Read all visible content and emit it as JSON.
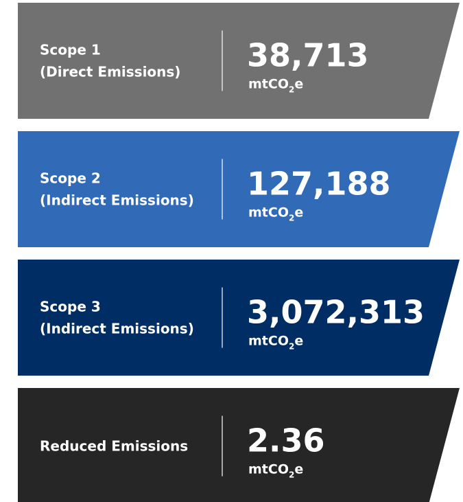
{
  "panels": [
    {
      "label": [
        "Scope 1",
        "(Direct Emissions)"
      ],
      "value": "38,713",
      "unit": {
        "base": "mtCO",
        "sub": "2",
        "tail": "e"
      },
      "color": "#717171"
    },
    {
      "label": [
        "Scope 2",
        "(Indirect Emissions)"
      ],
      "value": "127,188",
      "unit": {
        "base": "mtCO",
        "sub": "2",
        "tail": "e"
      },
      "color": "#316bb7"
    },
    {
      "label": [
        "Scope 3",
        "(Indirect Emissions)"
      ],
      "value": "3,072,313",
      "unit": {
        "base": "mtCO",
        "sub": "2",
        "tail": "e"
      },
      "color": "#002d63"
    },
    {
      "label": [
        "Reduced Emissions"
      ],
      "value": "2.36",
      "unit": {
        "base": "mtCO",
        "sub": "2",
        "tail": "e"
      },
      "color": "#262626"
    }
  ]
}
